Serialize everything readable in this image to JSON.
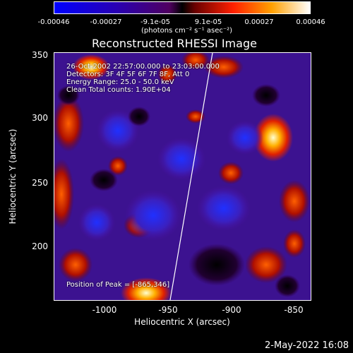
{
  "colorbar": {
    "ticks": [
      "-0.00046",
      "-0.00027",
      "-9.1e-05",
      "9.1e-05",
      "0.00027",
      "0.00046"
    ],
    "units": "(photons cm⁻² s⁻¹ asec⁻²)",
    "colors": [
      "#0000ff",
      "#2a00b0",
      "#6a00a0",
      "#b01010",
      "#ff5000",
      "#ffb020",
      "#ffffff"
    ]
  },
  "title": "Reconstructed RHESSI Image",
  "info": {
    "time": "26-Oct-2002 22:57:00.000 to 23:03:00.000",
    "detectors": "Detectors: 3F 4F 5F 6F 7F 8F, Att 0",
    "energy": "Energy Range: 25.0 - 50.0 keV",
    "clean": "Clean     Total counts: 1.90E+04",
    "peak": "Position of Peak = [-865,346]"
  },
  "axes": {
    "xlabel": "Heliocentric X (arcsec)",
    "ylabel": "Heliocentric Y (arcsec)",
    "xticks": [
      "-1000",
      "-950",
      "-900",
      "-850"
    ],
    "yticks": [
      "350",
      "300",
      "250",
      "200"
    ]
  },
  "date_stamp": "2-May-2022 16:08"
}
